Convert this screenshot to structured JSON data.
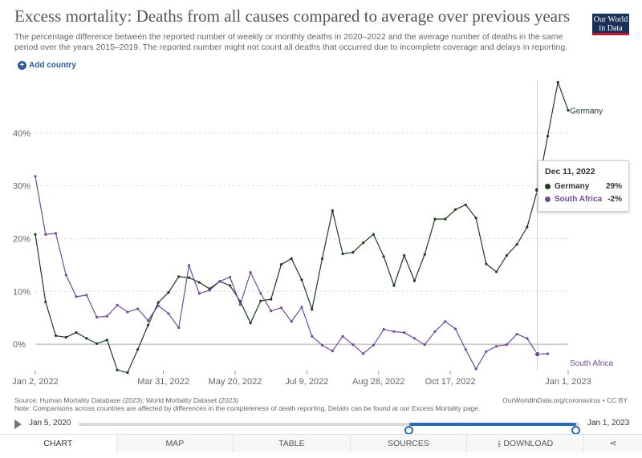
{
  "header": {
    "title": "Excess mortality: Deaths from all causes compared to average over previous years",
    "subtitle": "The percentage difference between the reported number of weekly or monthly deaths in 2020–2022 and the average number of deaths in the same period over the years 2015–2019. The reported number might not count all deaths that occurred due to incomplete coverage and delays in reporting.",
    "logo_line1": "Our World",
    "logo_line2": "in Data"
  },
  "controls": {
    "add_country": "Add country"
  },
  "tooltip": {
    "date": "Dec 11, 2022",
    "rows": [
      {
        "name": "Germany",
        "value": "29%"
      },
      {
        "name": "South Africa",
        "value": "-2%"
      }
    ]
  },
  "footer": {
    "source": "Source: Human Mortality Database (2023); World Mortality Dataset (2023)",
    "note": "Note: Comparisons across countries are affected by differences in the completeness of death reporting. Details can be found at our Excess Mortality page.",
    "link": "OurWorldInData.org/coronavirus • CC BY"
  },
  "timeline": {
    "start": "Jan 5, 2020",
    "end": "Jan 1, 2023"
  },
  "tabs": [
    "CHART",
    "MAP",
    "TABLE",
    "SOURCES",
    "DOWNLOAD"
  ],
  "colors": {
    "germany": "#1e3b1e",
    "south_africa": "#6e4d9c",
    "grid": "#dddddd",
    "axis": "#999999"
  },
  "chart_data": {
    "type": "line",
    "title": "Excess mortality: Deaths from all causes compared to average over previous years",
    "xlabel": "",
    "ylabel": "",
    "ylim": [
      -5,
      50
    ],
    "yticks": [
      0,
      10,
      20,
      30,
      40
    ],
    "ytick_labels": [
      "0%",
      "10%",
      "20%",
      "30%",
      "40%"
    ],
    "xticks": [
      {
        "week": 0,
        "label": "Jan 2, 2022"
      },
      {
        "week": 12.5,
        "label": "Mar 31, 2022"
      },
      {
        "week": 19.5,
        "label": "May 20, 2022"
      },
      {
        "week": 26.5,
        "label": "Jul 9, 2022"
      },
      {
        "week": 33.5,
        "label": "Aug 28, 2022"
      },
      {
        "week": 40.5,
        "label": "Oct 17, 2022"
      },
      {
        "week": 52,
        "label": "Jan 1, 2023"
      }
    ],
    "x_unit": "weeks since Jan 2, 2022",
    "xlim": [
      0,
      52
    ],
    "series": [
      {
        "name": "Germany",
        "end_label": "Germany",
        "weeks": [
          0,
          1,
          2,
          3,
          4,
          5,
          6,
          7,
          8,
          9,
          10,
          11,
          12,
          13,
          14,
          15,
          16,
          17,
          18,
          19,
          20,
          21,
          22,
          23,
          24,
          25,
          26,
          27,
          28,
          29,
          30,
          31,
          32,
          33,
          34,
          35,
          36,
          37,
          38,
          39,
          40,
          41,
          42,
          43,
          44,
          45,
          46,
          47,
          48,
          49,
          50,
          51,
          52
        ],
        "values": [
          20.8,
          8,
          1.6,
          1.3,
          2.2,
          1.1,
          0.1,
          0.8,
          -4.9,
          -5.4,
          -1,
          3.6,
          7.9,
          9.8,
          12.8,
          12.6,
          11.7,
          10.5,
          11.9,
          11.1,
          8.1,
          4,
          8.2,
          8.5,
          15.1,
          16.2,
          12.2,
          6.6,
          16.2,
          25.3,
          17.1,
          17.4,
          19.2,
          20.8,
          16.6,
          11.1,
          16.8,
          12,
          17,
          23.7,
          23.7,
          25.5,
          26.4,
          23.9,
          15.2,
          13.7,
          16.8,
          18.9,
          22.2,
          29.2,
          39.4,
          49.6,
          44.3
        ]
      },
      {
        "name": "South Africa",
        "end_label": "South Africa",
        "weeks": [
          0,
          1,
          2,
          3,
          4,
          5,
          6,
          7,
          8,
          9,
          10,
          11,
          12,
          13,
          14,
          15,
          16,
          17,
          18,
          19,
          20,
          21,
          22,
          23,
          24,
          25,
          26,
          27,
          28,
          29,
          30,
          31,
          32,
          33,
          34,
          35,
          36,
          37,
          38,
          39,
          40,
          41,
          42,
          43,
          44,
          45,
          46,
          47,
          48,
          49,
          50
        ],
        "values": [
          31.8,
          20.8,
          21,
          13.1,
          9,
          9.3,
          5.1,
          5.3,
          7.4,
          6.1,
          6.7,
          4.5,
          7.3,
          5.8,
          3.1,
          14.9,
          9.6,
          10.2,
          11.9,
          12.7,
          7.5,
          13.6,
          9.6,
          6.3,
          6.9,
          4.3,
          7,
          1.5,
          -0.2,
          -1.3,
          1.5,
          -0.1,
          -1.8,
          -0.2,
          2.8,
          2.4,
          2.2,
          1.1,
          -0.1,
          2.4,
          4.3,
          2.9,
          -1,
          -4.7,
          -1.4,
          -0.4,
          -0.1,
          1.9,
          1.1,
          -1.9,
          -1.8
        ]
      }
    ],
    "highlight": {
      "week": 49,
      "label": "Dec 11, 2022"
    }
  }
}
